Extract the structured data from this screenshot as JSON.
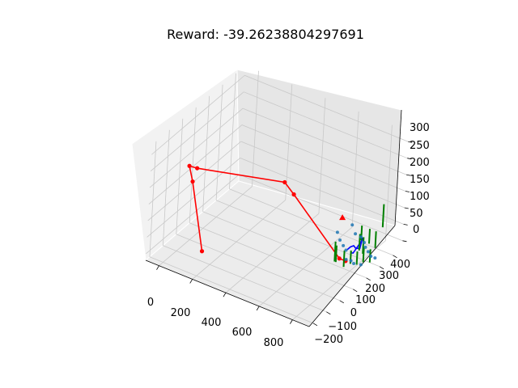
{
  "chart_data": {
    "type": "scatter3d",
    "title": "Reward: -39.26238804297691",
    "xlabel": "",
    "ylabel": "",
    "zlabel": "",
    "x_ticks": [
      "0",
      "200",
      "400",
      "600",
      "800"
    ],
    "y_ticks": [
      "−200",
      "−100",
      "0",
      "100",
      "200",
      "300",
      "400"
    ],
    "z_ticks": [
      "0",
      "50",
      "100",
      "150",
      "200",
      "250",
      "300"
    ],
    "xlim": [
      -80,
      900
    ],
    "ylim": [
      -230,
      470
    ],
    "zlim": [
      -20,
      330
    ],
    "grid": true,
    "colors": {
      "trajectory": "#ff0000",
      "local_path": "#0000ff",
      "obstacles": "#008000",
      "points": "#1f77b4",
      "goal": "#ff0000"
    },
    "series": [
      {
        "kind": "trajectory",
        "points": [
          [
            180,
            -140,
            30
          ],
          [
            110,
            -150,
            230
          ],
          [
            75,
            -135,
            265
          ],
          [
            110,
            -120,
            260
          ],
          [
            420,
            160,
            185
          ],
          [
            470,
            170,
            155
          ],
          [
            750,
            180,
            15
          ],
          [
            780,
            190,
            10
          ]
        ]
      },
      {
        "kind": "local_path",
        "points": [
          [
            800,
            170,
            55
          ],
          [
            815,
            175,
            65
          ],
          [
            830,
            180,
            70
          ],
          [
            835,
            190,
            60
          ],
          [
            845,
            210,
            55
          ],
          [
            850,
            220,
            85
          ],
          [
            860,
            205,
            85
          ],
          [
            840,
            165,
            55
          ],
          [
            835,
            150,
            60
          ]
        ]
      },
      {
        "kind": "obstacles",
        "segments": [
          [
            [
              745,
              160,
              10
            ],
            [
              745,
              160,
              60
            ]
          ],
          [
            [
              760,
              130,
              25
            ],
            [
              760,
              130,
              85
            ]
          ],
          [
            [
              820,
              250,
              60
            ],
            [
              820,
              250,
              105
            ]
          ],
          [
            [
              830,
              225,
              40
            ],
            [
              830,
              225,
              90
            ]
          ],
          [
            [
              845,
              235,
              30
            ],
            [
              845,
              235,
              80
            ]
          ],
          [
            [
              860,
              260,
              55
            ],
            [
              860,
              260,
              100
            ]
          ],
          [
            [
              875,
              290,
              35
            ],
            [
              875,
              290,
              85
            ]
          ],
          [
            [
              890,
              320,
              90
            ],
            [
              890,
              320,
              160
            ]
          ],
          [
            [
              800,
              150,
              10
            ],
            [
              800,
              150,
              60
            ]
          ],
          [
            [
              820,
              175,
              15
            ],
            [
              820,
              175,
              55
            ]
          ],
          [
            [
              835,
              205,
              5
            ],
            [
              835,
              205,
              45
            ]
          ],
          [
            [
              850,
              235,
              5
            ],
            [
              850,
              235,
              50
            ]
          ],
          [
            [
              870,
              260,
              0
            ],
            [
              870,
              260,
              40
            ]
          ]
        ]
      },
      {
        "kind": "points",
        "points": [
          [
            760,
            140,
            110
          ],
          [
            770,
            150,
            85
          ],
          [
            780,
            165,
            65
          ],
          [
            790,
            175,
            50
          ],
          [
            800,
            200,
            120
          ],
          [
            810,
            215,
            90
          ],
          [
            825,
            240,
            75
          ],
          [
            835,
            255,
            55
          ],
          [
            840,
            260,
            40
          ],
          [
            850,
            270,
            25
          ],
          [
            860,
            280,
            10
          ],
          [
            870,
            300,
            0
          ],
          [
            805,
            160,
            30
          ],
          [
            815,
            185,
            20
          ],
          [
            825,
            195,
            10
          ],
          [
            845,
            225,
            0
          ]
        ]
      },
      {
        "kind": "goal",
        "point": [
          740,
          200,
          130
        ]
      }
    ]
  }
}
